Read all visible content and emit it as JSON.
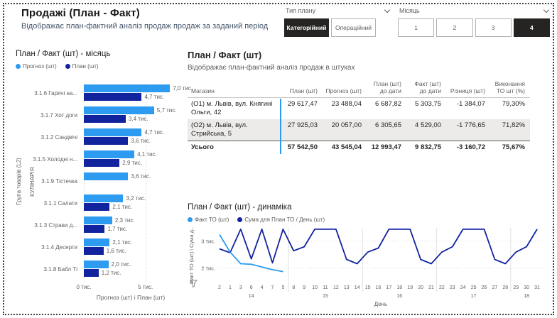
{
  "app": {
    "title": "Продажі (План - Факт)",
    "subtitle": "Відображає план-фактний аналіз продаж продаж за заданий період"
  },
  "slicers": {
    "plan_type": {
      "label": "Тип плану",
      "options": [
        {
          "label": "Категорійний",
          "selected": true
        },
        {
          "label": "Операційний",
          "selected": false
        }
      ]
    },
    "month": {
      "label": "Місяць",
      "options": [
        {
          "label": "1",
          "selected": false
        },
        {
          "label": "2",
          "selected": false
        },
        {
          "label": "3",
          "selected": false
        },
        {
          "label": "4",
          "selected": true
        }
      ]
    }
  },
  "colors": {
    "prognoz_light_blue": "#2D9BF0",
    "plan_dark_blue": "#12239E",
    "selected_button_bg": "#252423",
    "text_gray": "#605E5C",
    "alt_row_bg": "#ECEBEA"
  },
  "chart_data": [
    {
      "type": "bar",
      "orientation": "horizontal",
      "title": "План / Факт (шт) - місяць",
      "ylabel": "Група товарів (L2)",
      "group_label": "КУЛІНАРІЯ",
      "xlabel": "Прогноз (шт) і План (шт)",
      "unit": "тис.",
      "xlim": [
        0,
        7.5
      ],
      "x_ticks": [
        {
          "label": "0 тис.",
          "value": 0
        },
        {
          "label": "5 тис.",
          "value": 5
        }
      ],
      "categories": [
        "3.1.6 Гарячі на...",
        "3.1.7 Хот доги",
        "3.1.2 Сандвічі",
        "3.1.5 Холодні н...",
        "3.1.9 Тістечка",
        "3.1.1 Салати",
        "3.1.3 Страви д...",
        "3.1.4 Десерти",
        "3.1.8 Бабл Ті"
      ],
      "series": [
        {
          "name": "Прогноз (шт)",
          "color": "#2D9BF0",
          "values": [
            7.0,
            5.7,
            4.7,
            4.1,
            3.6,
            3.2,
            2.3,
            2.1,
            2.0
          ],
          "labels": [
            "7,0 тис.",
            "5,7 тис.",
            "4,7 тис.",
            "4,1 тис.",
            "3,6 тис.",
            "3,2 тис.",
            "2,3 тис.",
            "2,1 тис.",
            "2,0 тис."
          ]
        },
        {
          "name": "План (шт)",
          "color": "#12239E",
          "values": [
            4.7,
            3.4,
            3.6,
            2.9,
            null,
            2.1,
            1.7,
            1.6,
            1.2
          ],
          "labels": [
            "4,7 тис.",
            "3,4 тис.",
            "3,6 тис.",
            "2,9 тис.",
            null,
            "2,1 тис.",
            "1,7 тис.",
            "1,6 тис.",
            "1,2 тис."
          ]
        }
      ]
    },
    {
      "type": "table",
      "title": "План / Факт (шт)",
      "subtitle": "Відображає план-фактний аналіз продаж в штуках",
      "columns": [
        "Магазин",
        "План (шт)",
        "Прогноз (шт)",
        "План (шт) до дати",
        "Факт (шт) до дати",
        "Різниця (шт)",
        "Виконання ТО шт (%)"
      ],
      "rows": [
        [
          "(О1) м. Львів, вул. Княгині Ольги, 42",
          "29 617,47",
          "23 488,04",
          "6 687,82",
          "5 303,75",
          "-1 384,07",
          "79,30%"
        ],
        [
          "(О2) м. Львів, вул. Стрийська, 5",
          "27 925,03",
          "20 057,00",
          "6 305,65",
          "4 529,00",
          "-1 776,65",
          "71,82%"
        ]
      ],
      "total_row": [
        "Усього",
        "57 542,50",
        "43 545,04",
        "12 993,47",
        "9 832,75",
        "-3 160,72",
        "75,67%"
      ]
    },
    {
      "type": "line",
      "title": "План / Факт (шт) - динаміка",
      "ylabel": "Факт ТО (шт) і Сума д...",
      "xlabel": "День",
      "unit": "тис.",
      "ylim": [
        1.75,
        3.5
      ],
      "y_ticks": [
        {
          "label": "3 тис.",
          "value": 3
        },
        {
          "label": "2 тис.",
          "value": 2
        }
      ],
      "x": [
        "2",
        "1",
        "3",
        "6",
        "4",
        "7",
        "5",
        "8",
        "9",
        "10",
        "11",
        "12",
        "13",
        "14",
        "15",
        "16",
        "17",
        "18",
        "19",
        "20",
        "21",
        "22",
        "23",
        "24",
        "25",
        "26",
        "27",
        "28",
        "29",
        "30",
        "31"
      ],
      "week_groups": [
        {
          "label": "14",
          "days": 7
        },
        {
          "label": "15",
          "days": 7
        },
        {
          "label": "16",
          "days": 7
        },
        {
          "label": "17",
          "days": 7
        },
        {
          "label": "18",
          "days": 3
        }
      ],
      "series": [
        {
          "name": "Факт ТО (шт)",
          "color": "#2D9BF0",
          "values": [
            3.25,
            2.6,
            2.17,
            2.15,
            2.05,
            1.95,
            1.88
          ]
        },
        {
          "name": "Сума для План ТО / День (шт)",
          "color": "#12239E",
          "values": [
            2.72,
            2.58,
            3.45,
            2.35,
            3.45,
            2.2,
            3.45,
            2.65,
            2.8,
            3.45,
            3.45,
            3.45,
            2.33,
            2.17,
            2.6,
            2.75,
            3.45,
            3.45,
            3.45,
            2.33,
            2.17,
            2.6,
            2.8,
            3.45,
            3.45,
            3.45,
            2.33,
            2.17,
            2.6,
            2.8,
            3.45
          ]
        }
      ]
    }
  ]
}
